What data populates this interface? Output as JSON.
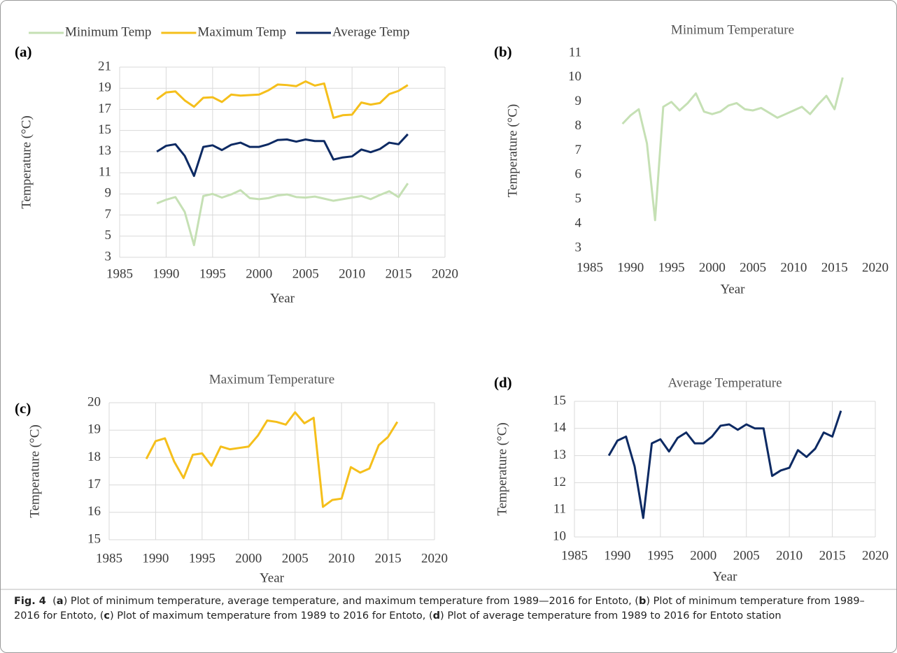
{
  "chart_data": [
    {
      "type": "line",
      "panel": "(a)",
      "xlabel": "Year",
      "ylabel": "Temperature (°C)",
      "x": [
        1989,
        1990,
        1991,
        1992,
        1993,
        1994,
        1995,
        1996,
        1997,
        1998,
        1999,
        2000,
        2001,
        2002,
        2003,
        2004,
        2005,
        2006,
        2007,
        2008,
        2009,
        2010,
        2011,
        2012,
        2013,
        2014,
        2015,
        2016
      ],
      "series": [
        {
          "name": "Minimum Temp",
          "color": "#c5e0b4",
          "values": [
            8.1,
            8.45,
            8.7,
            7.3,
            4.15,
            8.8,
            9.0,
            8.65,
            8.95,
            9.35,
            8.6,
            8.5,
            8.6,
            8.85,
            8.95,
            8.7,
            8.65,
            8.75,
            8.55,
            8.35,
            8.5,
            8.65,
            8.8,
            8.5,
            8.9,
            9.25,
            8.7,
            10.0
          ]
        },
        {
          "name": "Maximum Temp",
          "color": "#f5bf1b",
          "values": [
            17.95,
            18.6,
            18.7,
            17.85,
            17.25,
            18.1,
            18.15,
            17.7,
            18.4,
            18.3,
            18.35,
            18.4,
            18.8,
            19.35,
            19.3,
            19.2,
            19.65,
            19.25,
            19.45,
            16.2,
            16.45,
            16.5,
            17.65,
            17.45,
            17.6,
            18.45,
            18.75,
            19.3
          ]
        },
        {
          "name": "Average Temp",
          "color": "#0d2a63",
          "values": [
            13.0,
            13.55,
            13.7,
            12.6,
            10.7,
            13.45,
            13.6,
            13.15,
            13.65,
            13.85,
            13.45,
            13.45,
            13.7,
            14.1,
            14.15,
            13.95,
            14.15,
            14.0,
            14.0,
            12.25,
            12.45,
            12.55,
            13.2,
            12.95,
            13.25,
            13.85,
            13.7,
            14.65
          ]
        }
      ],
      "xlim": [
        1985,
        2020
      ],
      "xticks": [
        1985,
        1990,
        1995,
        2000,
        2005,
        2010,
        2015,
        2020
      ],
      "ylim": [
        3,
        21
      ],
      "yticks": [
        3,
        5,
        7,
        9,
        11,
        13,
        15,
        17,
        19,
        21
      ],
      "grid": true,
      "legend": "top"
    },
    {
      "type": "line",
      "panel": "(b)",
      "title": "Minimum Temperature",
      "xlabel": "Year",
      "ylabel": "Temperature (°C)",
      "x": [
        1989,
        1990,
        1991,
        1992,
        1993,
        1994,
        1995,
        1996,
        1997,
        1998,
        1999,
        2000,
        2001,
        2002,
        2003,
        2004,
        2005,
        2006,
        2007,
        2008,
        2009,
        2010,
        2011,
        2012,
        2013,
        2014,
        2015,
        2016
      ],
      "series": [
        {
          "color": "#c5e0b4",
          "values": [
            8.1,
            8.45,
            8.7,
            7.3,
            4.15,
            8.8,
            9.0,
            8.65,
            8.95,
            9.35,
            8.6,
            8.5,
            8.6,
            8.85,
            8.95,
            8.7,
            8.65,
            8.75,
            8.55,
            8.35,
            8.5,
            8.65,
            8.8,
            8.5,
            8.9,
            9.25,
            8.7,
            10.0
          ]
        }
      ],
      "xlim": [
        1985,
        2020
      ],
      "xticks": [
        1985,
        1990,
        1995,
        2000,
        2005,
        2010,
        2015,
        2020
      ],
      "ylim": [
        3,
        11
      ],
      "yticks": [
        3,
        4,
        5,
        6,
        7,
        8,
        9,
        10,
        11
      ],
      "grid": false
    },
    {
      "type": "line",
      "panel": "(c)",
      "title": "Maximum Temperature",
      "xlabel": "Year",
      "ylabel": "Temperature (°C)",
      "x": [
        1989,
        1990,
        1991,
        1992,
        1993,
        1994,
        1995,
        1996,
        1997,
        1998,
        1999,
        2000,
        2001,
        2002,
        2003,
        2004,
        2005,
        2006,
        2007,
        2008,
        2009,
        2010,
        2011,
        2012,
        2013,
        2014,
        2015,
        2016
      ],
      "series": [
        {
          "color": "#f5bf1b",
          "values": [
            17.95,
            18.6,
            18.7,
            17.85,
            17.25,
            18.1,
            18.15,
            17.7,
            18.4,
            18.3,
            18.35,
            18.4,
            18.8,
            19.35,
            19.3,
            19.2,
            19.65,
            19.25,
            19.45,
            16.2,
            16.45,
            16.5,
            17.65,
            17.45,
            17.6,
            18.45,
            18.75,
            19.3
          ]
        }
      ],
      "xlim": [
        1985,
        2020
      ],
      "xticks": [
        1985,
        1990,
        1995,
        2000,
        2005,
        2010,
        2015,
        2020
      ],
      "ylim": [
        15,
        20
      ],
      "yticks": [
        15,
        16,
        17,
        18,
        19,
        20
      ],
      "grid": true
    },
    {
      "type": "line",
      "panel": "(d)",
      "title": "Average Temperature",
      "xlabel": "Year",
      "ylabel": "Temperature (°C)",
      "x": [
        1989,
        1990,
        1991,
        1992,
        1993,
        1994,
        1995,
        1996,
        1997,
        1998,
        1999,
        2000,
        2001,
        2002,
        2003,
        2004,
        2005,
        2006,
        2007,
        2008,
        2009,
        2010,
        2011,
        2012,
        2013,
        2014,
        2015,
        2016
      ],
      "series": [
        {
          "color": "#0d2a63",
          "values": [
            13.0,
            13.55,
            13.7,
            12.6,
            10.7,
            13.45,
            13.6,
            13.15,
            13.65,
            13.85,
            13.45,
            13.45,
            13.7,
            14.1,
            14.15,
            13.95,
            14.15,
            14.0,
            14.0,
            12.25,
            12.45,
            12.55,
            13.2,
            12.95,
            13.25,
            13.85,
            13.7,
            14.65
          ]
        }
      ],
      "xlim": [
        1985,
        2020
      ],
      "xticks": [
        1985,
        1990,
        1995,
        2000,
        2005,
        2010,
        2015,
        2020
      ],
      "ylim": [
        10,
        15
      ],
      "yticks": [
        10,
        11,
        12,
        13,
        14,
        15
      ],
      "grid": true
    }
  ],
  "caption": [
    {
      "text": "Fig. 4",
      "bold": true
    },
    {
      "text": "  (",
      "bold": false
    },
    {
      "text": "a",
      "bold": true
    },
    {
      "text": ") Plot of minimum temperature, average temperature, and maximum temperature from 1989—2016 for Entoto, (",
      "bold": false
    },
    {
      "text": "b",
      "bold": true
    },
    {
      "text": ") Plot of minimum temperature from 1989–2016 for Entoto, (",
      "bold": false
    },
    {
      "text": "c",
      "bold": true
    },
    {
      "text": ") Plot of maximum temperature from 1989 to 2016 for Entoto, (",
      "bold": false
    },
    {
      "text": "d",
      "bold": true
    },
    {
      "text": ") Plot of average temperature from 1989 to 2016 for Entoto station",
      "bold": false
    }
  ]
}
